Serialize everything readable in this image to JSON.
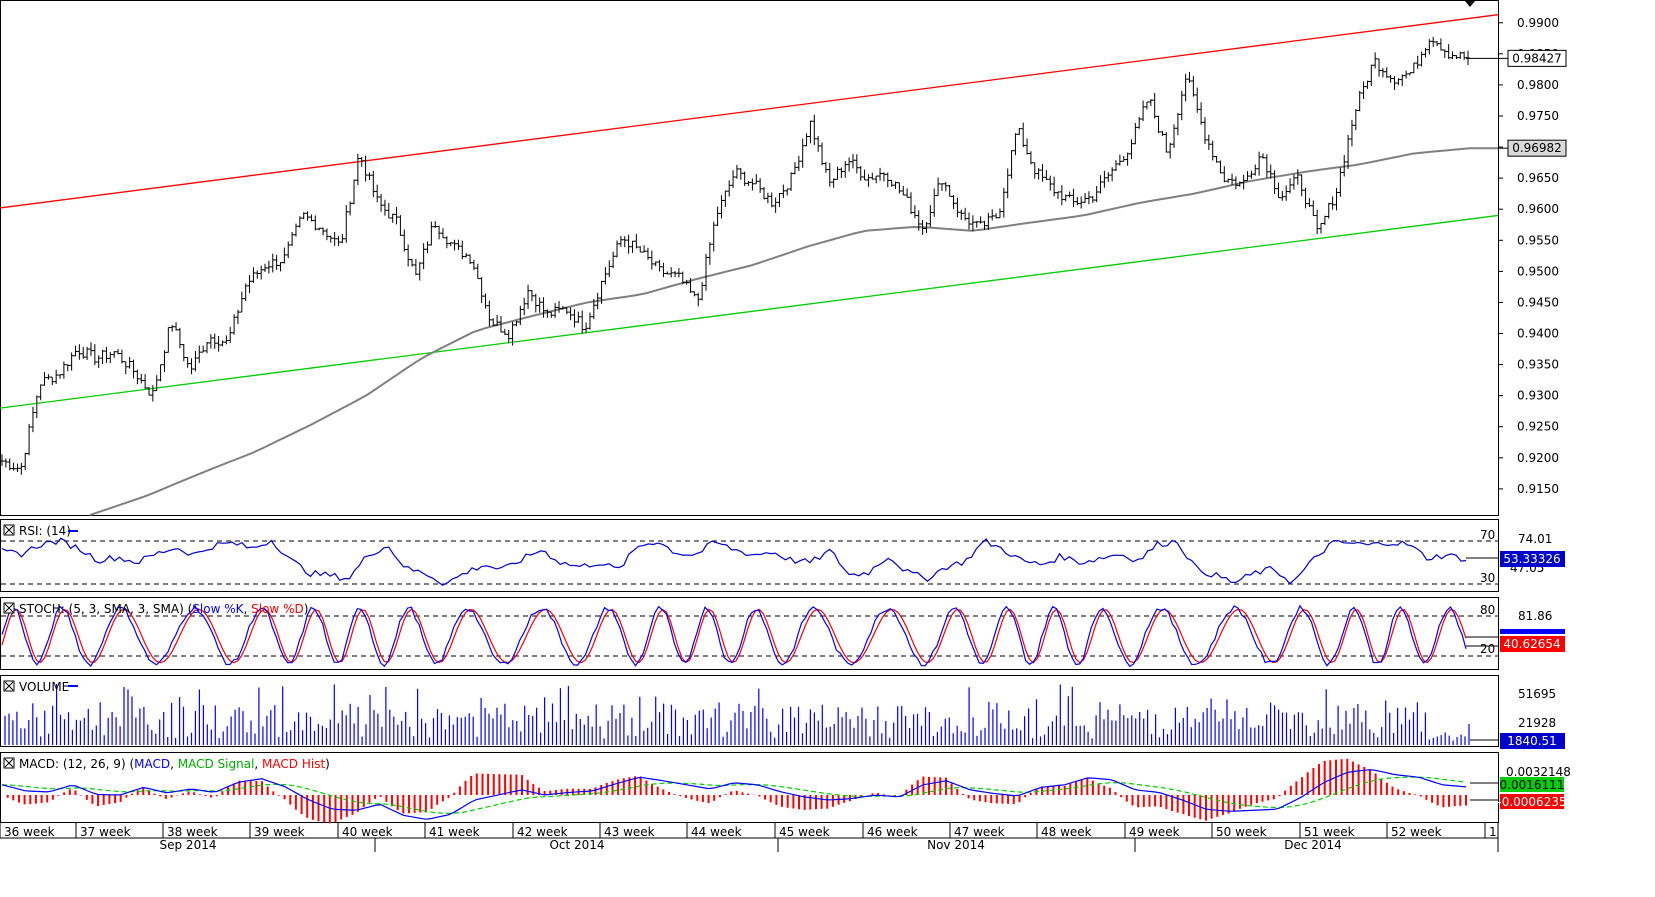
{
  "chart_data": {
    "type": "candlestick",
    "instrument_note": "",
    "price_axis": {
      "ticks": [
        "0.9900",
        "0.9850",
        "0.9800",
        "0.9750",
        "0.9700",
        "0.9650",
        "0.9600",
        "0.9550",
        "0.9500",
        "0.9450",
        "0.9400",
        "0.9350",
        "0.9300",
        "0.9250",
        "0.9200",
        "0.9150"
      ],
      "range": [
        0.9108,
        0.9935
      ],
      "last_price_label": "0.98427",
      "last_price": 0.98427,
      "ma_label": "0.96982",
      "ma_value": 0.96982
    },
    "channel": {
      "upper": {
        "start": 0.9602,
        "end": 0.9913,
        "color": "#ff0000"
      },
      "lower": {
        "start": 0.928,
        "end": 0.959,
        "color": "#00cc00"
      }
    },
    "price_path": [
      0.9195,
      0.9182,
      0.932,
      0.9335,
      0.9375,
      0.936,
      0.937,
      0.934,
      0.93,
      0.942,
      0.934,
      0.9395,
      0.9385,
      0.948,
      0.951,
      0.952,
      0.959,
      0.957,
      0.954,
      0.969,
      0.961,
      0.958,
      0.949,
      0.958,
      0.954,
      0.952,
      0.942,
      0.94,
      0.947,
      0.943,
      0.944,
      0.941,
      0.949,
      0.9555,
      0.953,
      0.95,
      0.949,
      0.945,
      0.959,
      0.966,
      0.964,
      0.961,
      0.965,
      0.974,
      0.964,
      0.968,
      0.965,
      0.966,
      0.962,
      0.957,
      0.965,
      0.959,
      0.957,
      0.959,
      0.973,
      0.966,
      0.963,
      0.961,
      0.962,
      0.966,
      0.97,
      0.978,
      0.969,
      0.9815,
      0.972,
      0.965,
      0.964,
      0.969,
      0.962,
      0.965,
      0.956,
      0.963,
      0.976,
      0.984,
      0.981,
      0.982,
      0.988,
      0.985,
      0.9843
    ],
    "ma_path": [
      0.9108,
      0.9138,
      0.9175,
      0.921,
      0.9253,
      0.93,
      0.936,
      0.9405,
      0.9428,
      0.945,
      0.9463,
      0.9488,
      0.951,
      0.954,
      0.9565,
      0.9572,
      0.9565,
      0.9578,
      0.959,
      0.961,
      0.9625,
      0.9645,
      0.966,
      0.9672,
      0.969,
      0.9698
    ],
    "rsi": {
      "label": "RSI: (14)",
      "levels": [
        "70",
        "30"
      ],
      "axis_label": "74.01",
      "current_label": "53.33326",
      "hidden_label": "47.05",
      "path": [
        60,
        58,
        67,
        70,
        63,
        52,
        55,
        50,
        58,
        64,
        57,
        66,
        68,
        63,
        71,
        52,
        40,
        38,
        35,
        57,
        66,
        44,
        40,
        30,
        40,
        48,
        43,
        53,
        62,
        50,
        46,
        50,
        43,
        65,
        70,
        59,
        57,
        69,
        62,
        57,
        60,
        52,
        50,
        61,
        38,
        41,
        56,
        41,
        35,
        46,
        51,
        70,
        62,
        51,
        48,
        56,
        50,
        54,
        58,
        52,
        67,
        70,
        44,
        38,
        31,
        40,
        44,
        31,
        51,
        68,
        68,
        66,
        69,
        67,
        54,
        57,
        53
      ]
    },
    "stoch": {
      "label": "STOCH: (5, 3, SMA, 3, SMA)",
      "k_name": "Slow %K",
      "d_name": "Slow %D",
      "levels": [
        "80",
        "20"
      ],
      "axis_label": "81.86",
      "current_label": "40.62654",
      "k_color": "#0000ff",
      "d_color": "#ff0000"
    },
    "volume": {
      "label": "VOLUME",
      "axis_labels": [
        "51695",
        "21928"
      ],
      "current_label": "1840.51",
      "color": "#0000ff"
    },
    "macd": {
      "label": "MACD: (12, 26, 9)",
      "macd_name": "MACD",
      "signal_name": "MACD Signal",
      "hist_name": "MACD Hist",
      "axis_label": "0.0032148",
      "macd_label": "0.0016111",
      "hist_label": "-0.0006235",
      "macd_color": "#0000ff",
      "signal_color": "#00cc00",
      "hist_color": "#ff0000",
      "path": [
        0.002,
        0.0008,
        0.0006,
        0.002,
        0.0001,
        0.0,
        0.0015,
        0.0004,
        0.0012,
        0.0005,
        0.0025,
        0.0032,
        0.0016,
        -0.001,
        -0.0028,
        -0.003,
        -0.0018,
        -0.004,
        -0.0048,
        -0.0038,
        -0.001,
        0.0,
        0.001,
        0.0,
        0.0005,
        0.0008,
        0.0022,
        0.0035,
        0.0028,
        0.002,
        0.0012,
        0.0024,
        0.002,
        0.0006,
        -0.0004,
        -0.001,
        -0.0007,
        0.0,
        -0.0004,
        0.002,
        0.0028,
        0.001,
        0.0003,
        -0.0002,
        0.0015,
        0.002,
        0.0034,
        0.003,
        0.001,
        0.0005,
        -0.001,
        -0.0028,
        -0.0032,
        -0.003,
        -0.0028,
        -0.0005,
        0.0025,
        0.0045,
        0.005,
        0.004,
        0.0035,
        0.002,
        0.0016
      ]
    },
    "x_axis": {
      "weeks": [
        "36 week",
        "37 week",
        "38 week",
        "39 week",
        "40 week",
        "41 week",
        "42 week",
        "43 week",
        "44 week",
        "45 week",
        "46 week",
        "47 week",
        "48 week",
        "49 week",
        "50 week",
        "51 week",
        "52 week",
        "1"
      ],
      "months": [
        "Sep 2014",
        "Oct 2014",
        "Nov 2014",
        "Dec 2014"
      ]
    }
  }
}
